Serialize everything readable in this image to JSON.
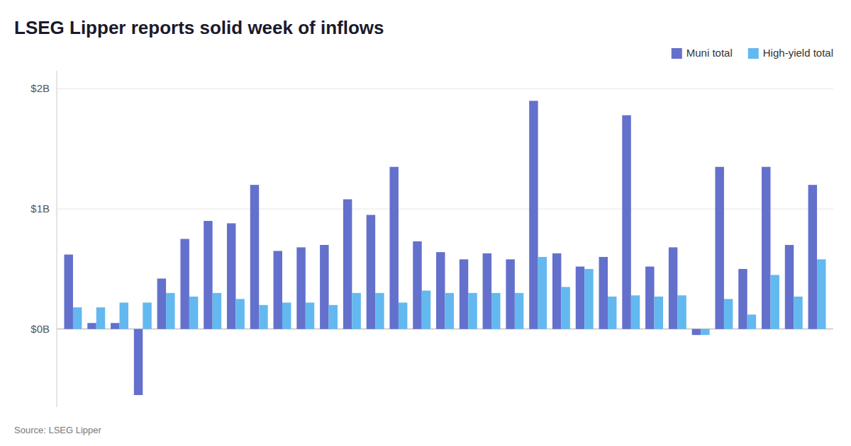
{
  "chart_data": {
    "type": "bar",
    "title": "LSEG Lipper reports solid week of inflows",
    "source": "Source: LSEG Lipper",
    "categories": [
      null,
      null,
      null,
      null,
      null,
      null,
      null,
      null,
      null,
      null,
      null,
      null,
      null,
      null,
      null,
      null,
      null,
      null,
      null,
      null,
      null,
      null,
      null,
      null,
      null,
      null,
      null,
      null,
      null,
      null,
      null,
      null,
      null
    ],
    "series": [
      {
        "name": "Muni total",
        "color": "#6370cc",
        "values": [
          0.62,
          0.05,
          0.05,
          -0.55,
          0.42,
          0.75,
          0.9,
          0.88,
          1.2,
          0.65,
          0.68,
          0.7,
          1.08,
          0.95,
          1.35,
          0.73,
          0.64,
          0.58,
          0.63,
          0.58,
          1.9,
          0.63,
          0.52,
          0.6,
          1.78,
          0.52,
          0.68,
          -0.05,
          1.35,
          0.5,
          1.35,
          0.7,
          1.2
        ]
      },
      {
        "name": "High-yield total",
        "color": "#63b8f0",
        "values": [
          0.18,
          0.18,
          0.22,
          0.22,
          0.3,
          0.27,
          0.3,
          0.25,
          0.2,
          0.22,
          0.22,
          0.2,
          0.3,
          0.3,
          0.22,
          0.32,
          0.3,
          0.3,
          0.3,
          0.3,
          0.6,
          0.35,
          0.5,
          0.27,
          0.28,
          0.27,
          0.28,
          -0.05,
          0.25,
          0.12,
          0.45,
          0.27,
          0.58
        ]
      }
    ],
    "ylim": [
      -0.65,
      2.15
    ],
    "yticks": [
      {
        "value": 0.0,
        "label": "$0B"
      },
      {
        "value": 1.0,
        "label": "$1B"
      },
      {
        "value": 2.0,
        "label": "$2B"
      }
    ],
    "grid": true,
    "legend": "top-right",
    "tick_labels": "y"
  }
}
